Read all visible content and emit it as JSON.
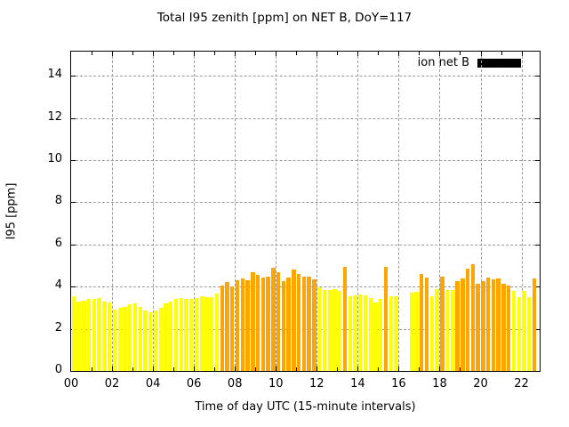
{
  "chart_data": {
    "type": "bar",
    "title": "Total I95 zenith [ppm] on NET B, DoY=117",
    "xlabel": "Time of day UTC (15-minute intervals)",
    "ylabel": "I95 [ppm]",
    "ylim": [
      0,
      15.15
    ],
    "yticks": [
      0,
      2,
      4,
      6,
      8,
      10,
      12,
      14
    ],
    "xticks": [
      "00",
      "02",
      "04",
      "06",
      "08",
      "10",
      "12",
      "14",
      "16",
      "18",
      "20",
      "22"
    ],
    "xtick_interval_hours": 2,
    "minor_xtick_interval_hours": 1,
    "bar_interval_minutes": 15,
    "grid": true,
    "legend": {
      "label": "ion net B",
      "swatch_color": "#000000",
      "position": "top-right-inside"
    },
    "colors": {
      "yellow": "#ffff00",
      "orange": "#ffa500"
    },
    "series_note": "single series; bar fill alternates yellow/orange per interval; gap = missing data",
    "bars": [
      {
        "t": "00:00",
        "v": 3.55,
        "c": "yellow"
      },
      {
        "t": "00:15",
        "v": 3.3,
        "c": "yellow"
      },
      {
        "t": "00:30",
        "v": 3.35,
        "c": "yellow"
      },
      {
        "t": "00:45",
        "v": 3.4,
        "c": "yellow"
      },
      {
        "t": "01:00",
        "v": 3.43,
        "c": "yellow"
      },
      {
        "t": "01:15",
        "v": 3.46,
        "c": "yellow"
      },
      {
        "t": "01:30",
        "v": 3.28,
        "c": "yellow"
      },
      {
        "t": "01:45",
        "v": 3.26,
        "c": "yellow"
      },
      {
        "t": "02:00",
        "v": 2.92,
        "c": "yellow"
      },
      {
        "t": "02:15",
        "v": 3.0,
        "c": "yellow"
      },
      {
        "t": "02:30",
        "v": 3.02,
        "c": "yellow"
      },
      {
        "t": "02:45",
        "v": 3.18,
        "c": "yellow"
      },
      {
        "t": "03:00",
        "v": 3.22,
        "c": "yellow"
      },
      {
        "t": "03:15",
        "v": 3.04,
        "c": "yellow"
      },
      {
        "t": "03:30",
        "v": 2.87,
        "c": "yellow"
      },
      {
        "t": "03:45",
        "v": 2.79,
        "c": "yellow"
      },
      {
        "t": "04:00",
        "v": 2.89,
        "c": "yellow"
      },
      {
        "t": "04:15",
        "v": 3.0,
        "c": "yellow"
      },
      {
        "t": "04:30",
        "v": 3.21,
        "c": "yellow"
      },
      {
        "t": "04:45",
        "v": 3.31,
        "c": "yellow"
      },
      {
        "t": "05:00",
        "v": 3.4,
        "c": "yellow"
      },
      {
        "t": "05:15",
        "v": 3.47,
        "c": "yellow"
      },
      {
        "t": "05:30",
        "v": 3.43,
        "c": "yellow"
      },
      {
        "t": "05:45",
        "v": 3.43,
        "c": "yellow"
      },
      {
        "t": "06:00",
        "v": 3.47,
        "c": "yellow"
      },
      {
        "t": "06:15",
        "v": 3.55,
        "c": "yellow"
      },
      {
        "t": "06:30",
        "v": 3.5,
        "c": "yellow"
      },
      {
        "t": "06:45",
        "v": 3.5,
        "c": "yellow"
      },
      {
        "t": "07:00",
        "v": 3.67,
        "c": "yellow"
      },
      {
        "t": "07:15",
        "v": 4.07,
        "c": "orange"
      },
      {
        "t": "07:30",
        "v": 4.21,
        "c": "orange"
      },
      {
        "t": "07:45",
        "v": 4.0,
        "c": "orange"
      },
      {
        "t": "08:00",
        "v": 4.31,
        "c": "orange"
      },
      {
        "t": "08:15",
        "v": 4.38,
        "c": "orange"
      },
      {
        "t": "08:30",
        "v": 4.31,
        "c": "orange"
      },
      {
        "t": "08:45",
        "v": 4.68,
        "c": "orange"
      },
      {
        "t": "09:00",
        "v": 4.54,
        "c": "orange"
      },
      {
        "t": "09:15",
        "v": 4.45,
        "c": "orange"
      },
      {
        "t": "09:30",
        "v": 4.46,
        "c": "orange"
      },
      {
        "t": "09:45",
        "v": 4.89,
        "c": "orange"
      },
      {
        "t": "10:00",
        "v": 4.7,
        "c": "orange"
      },
      {
        "t": "10:15",
        "v": 4.25,
        "c": "orange"
      },
      {
        "t": "10:30",
        "v": 4.45,
        "c": "orange"
      },
      {
        "t": "10:45",
        "v": 4.82,
        "c": "orange"
      },
      {
        "t": "11:00",
        "v": 4.59,
        "c": "orange"
      },
      {
        "t": "11:15",
        "v": 4.49,
        "c": "orange"
      },
      {
        "t": "11:30",
        "v": 4.49,
        "c": "orange"
      },
      {
        "t": "11:45",
        "v": 4.35,
        "c": "orange"
      },
      {
        "t": "12:00",
        "v": 3.95,
        "c": "yellow"
      },
      {
        "t": "12:15",
        "v": 3.85,
        "c": "yellow"
      },
      {
        "t": "12:30",
        "v": 3.82,
        "c": "yellow"
      },
      {
        "t": "12:45",
        "v": 3.87,
        "c": "yellow"
      },
      {
        "t": "13:00",
        "v": 3.8,
        "c": "yellow"
      },
      {
        "t": "13:15",
        "v": 4.95,
        "c": "orange"
      },
      {
        "t": "13:30",
        "v": 3.53,
        "c": "yellow"
      },
      {
        "t": "13:45",
        "v": 3.6,
        "c": "yellow"
      },
      {
        "t": "14:00",
        "v": 3.63,
        "c": "yellow"
      },
      {
        "t": "14:15",
        "v": 3.58,
        "c": "yellow"
      },
      {
        "t": "14:30",
        "v": 3.45,
        "c": "yellow"
      },
      {
        "t": "14:45",
        "v": 3.26,
        "c": "yellow"
      },
      {
        "t": "15:00",
        "v": 3.4,
        "c": "yellow"
      },
      {
        "t": "15:15",
        "v": 4.95,
        "c": "orange"
      },
      {
        "t": "15:30",
        "v": 3.53,
        "c": "yellow"
      },
      {
        "t": "15:45",
        "v": 3.53,
        "c": "yellow"
      },
      {
        "t": "16:00",
        "v": null,
        "c": null
      },
      {
        "t": "16:15",
        "v": null,
        "c": null
      },
      {
        "t": "16:30",
        "v": 3.72,
        "c": "yellow"
      },
      {
        "t": "16:45",
        "v": 3.74,
        "c": "yellow"
      },
      {
        "t": "17:00",
        "v": 4.6,
        "c": "orange"
      },
      {
        "t": "17:15",
        "v": 4.45,
        "c": "orange"
      },
      {
        "t": "17:30",
        "v": 3.55,
        "c": "yellow"
      },
      {
        "t": "17:45",
        "v": 3.9,
        "c": "yellow"
      },
      {
        "t": "18:00",
        "v": 4.49,
        "c": "orange"
      },
      {
        "t": "18:15",
        "v": 3.86,
        "c": "yellow"
      },
      {
        "t": "18:30",
        "v": 3.83,
        "c": "yellow"
      },
      {
        "t": "18:45",
        "v": 4.25,
        "c": "orange"
      },
      {
        "t": "19:00",
        "v": 4.4,
        "c": "orange"
      },
      {
        "t": "19:15",
        "v": 4.85,
        "c": "orange"
      },
      {
        "t": "19:30",
        "v": 5.05,
        "c": "orange"
      },
      {
        "t": "19:45",
        "v": 4.15,
        "c": "orange"
      },
      {
        "t": "20:00",
        "v": 4.25,
        "c": "orange"
      },
      {
        "t": "20:15",
        "v": 4.45,
        "c": "orange"
      },
      {
        "t": "20:30",
        "v": 4.35,
        "c": "orange"
      },
      {
        "t": "20:45",
        "v": 4.4,
        "c": "orange"
      },
      {
        "t": "21:00",
        "v": 4.15,
        "c": "orange"
      },
      {
        "t": "21:15",
        "v": 4.05,
        "c": "orange"
      },
      {
        "t": "21:30",
        "v": 3.8,
        "c": "yellow"
      },
      {
        "t": "21:45",
        "v": 3.5,
        "c": "yellow"
      },
      {
        "t": "22:00",
        "v": 3.8,
        "c": "yellow"
      },
      {
        "t": "22:15",
        "v": 3.5,
        "c": "yellow"
      },
      {
        "t": "22:30",
        "v": 4.4,
        "c": "orange"
      }
    ]
  }
}
